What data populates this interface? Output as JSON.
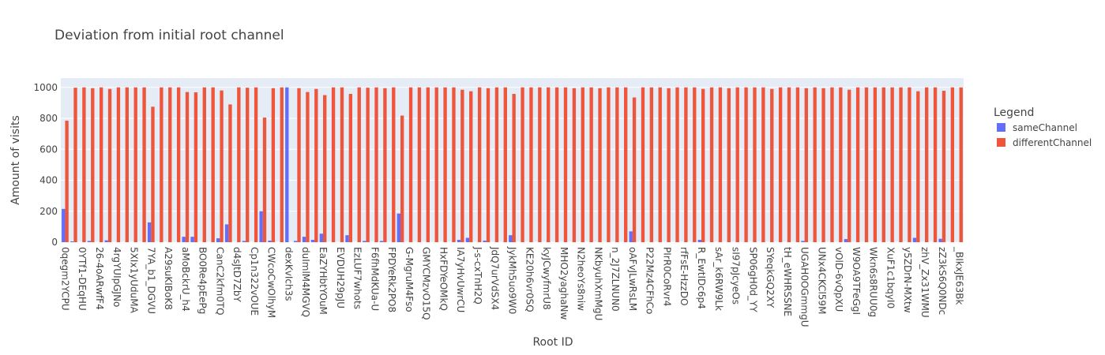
{
  "chart_data": {
    "type": "bar",
    "title": "Deviation from initial root channel",
    "x_label": "Root ID",
    "y_label": "Amount of visits",
    "legend_title": "Legend",
    "legend_position": "right",
    "grid": true,
    "ylim": [
      0,
      1060
    ],
    "yticks": [
      0,
      200,
      400,
      600,
      800,
      1000
    ],
    "categories": [
      "0qegm2YCPU",
      null,
      "0YTf1-DEqHU",
      null,
      "26-4oARwfF4",
      null,
      "4rgYUIpGJNo",
      null,
      "5XIx1yUduMA",
      null,
      "7YA_b1_DGVU",
      null,
      "A29suKIBoK8",
      null,
      "aMoBckrU_h4",
      null,
      "BO0Re4pEePg",
      null,
      "CanC2kfm0TQ",
      null,
      "d4sJtD7ZbY",
      null,
      "Cp1n322vOUE",
      null,
      "CWcoCwOlhyM",
      null,
      "dexKvIch3s",
      null,
      "duImlM4MGVQ",
      null,
      "EaZYHbtYOuM",
      null,
      "EVDUH29pJU",
      null,
      "EzLUF7whots",
      null,
      "F6fhMdKUa-U",
      null,
      "FPDYeRk2PO8",
      null,
      "G-MgruM4Fso",
      null,
      "GMYCMzvO15Q",
      null,
      "HxFDYeOMkQ",
      null,
      "IA7yHvUwrCU",
      null,
      "J-s-cxTnH2Q",
      null,
      "JdQ7urVdSX4",
      null,
      "JykMh5uo9W0",
      null,
      "KE20h6vr0SQ",
      null,
      "kyJCwyfmrU8",
      null,
      "MHO2yaghaNw",
      null,
      "N2heoYs8niw",
      null,
      "NKbyuhXmMgU",
      null,
      "n_2J7ZLNUN0",
      null,
      "oAFvJLwRsLM",
      null,
      "P22Mz4CFhCo",
      null,
      "PIrR0CoRvr4",
      null,
      "rfFsE-HzzDO",
      null,
      "R_EwtIDc6p4",
      null,
      "sAr_k6RW9Lk",
      null,
      "sI97pJcyeOs",
      null,
      "SP06gH0d_YY",
      null,
      "SYeqkGQ2XY",
      null,
      "tH_eWHRSSNE",
      null,
      "UGAH0OGmmgU",
      null,
      "UNx4CKCl59M",
      null,
      "vOlD-6vQpXU",
      null,
      "W9OA9TFeGgI",
      null,
      "Wkn6s8RUU0g",
      null,
      "XuF1c1bqyI0",
      null,
      "y5ZDrN-MXtw",
      null,
      "zhV_Zx31WMU",
      null,
      "zZ3kS6Q0NDc",
      null,
      "_BIkxJE63Bk"
    ],
    "series": [
      {
        "name": "sameChannel",
        "color": "#636efa",
        "values": [
          215,
          5,
          0,
          8,
          0,
          12,
          0,
          0,
          0,
          0,
          128,
          0,
          0,
          0,
          35,
          35,
          0,
          0,
          25,
          115,
          0,
          8,
          0,
          200,
          10,
          0,
          1000,
          8,
          35,
          15,
          55,
          0,
          0,
          45,
          0,
          8,
          0,
          8,
          0,
          185,
          0,
          0,
          0,
          0,
          0,
          0,
          15,
          28,
          0,
          10,
          0,
          0,
          45,
          0,
          0,
          0,
          0,
          0,
          0,
          0,
          0,
          0,
          0,
          0,
          0,
          0,
          70,
          0,
          0,
          0,
          0,
          0,
          0,
          0,
          15,
          0,
          0,
          0,
          0,
          0,
          0,
          0,
          0,
          0,
          0,
          0,
          8,
          0,
          0,
          0,
          0,
          20,
          0,
          0,
          0,
          0,
          0,
          0,
          0,
          28,
          0,
          0,
          22,
          0,
          0
        ]
      },
      {
        "name": "differentChannel",
        "color": "#EF553B",
        "values": [
          785,
          998,
          1000,
          995,
          1000,
          990,
          1000,
          1000,
          1000,
          1000,
          875,
          1000,
          1000,
          1000,
          970,
          968,
          1000,
          1000,
          980,
          890,
          1000,
          998,
          1000,
          805,
          995,
          1000,
          0,
          995,
          970,
          990,
          950,
          1000,
          1000,
          958,
          1000,
          998,
          1000,
          995,
          1000,
          818,
          1000,
          1000,
          1000,
          1000,
          1000,
          1000,
          985,
          975,
          1000,
          995,
          1000,
          1000,
          958,
          1000,
          1000,
          1000,
          1000,
          1000,
          1000,
          995,
          1000,
          1000,
          995,
          1000,
          1000,
          1000,
          935,
          1000,
          1000,
          1000,
          995,
          1000,
          1000,
          1000,
          990,
          1000,
          1000,
          995,
          1000,
          1000,
          1000,
          1000,
          990,
          1000,
          1000,
          1000,
          995,
          1000,
          995,
          1000,
          1000,
          985,
          1000,
          1000,
          1000,
          1000,
          1000,
          1000,
          1000,
          975,
          1000,
          1000,
          978,
          1000,
          1000
        ]
      }
    ]
  }
}
